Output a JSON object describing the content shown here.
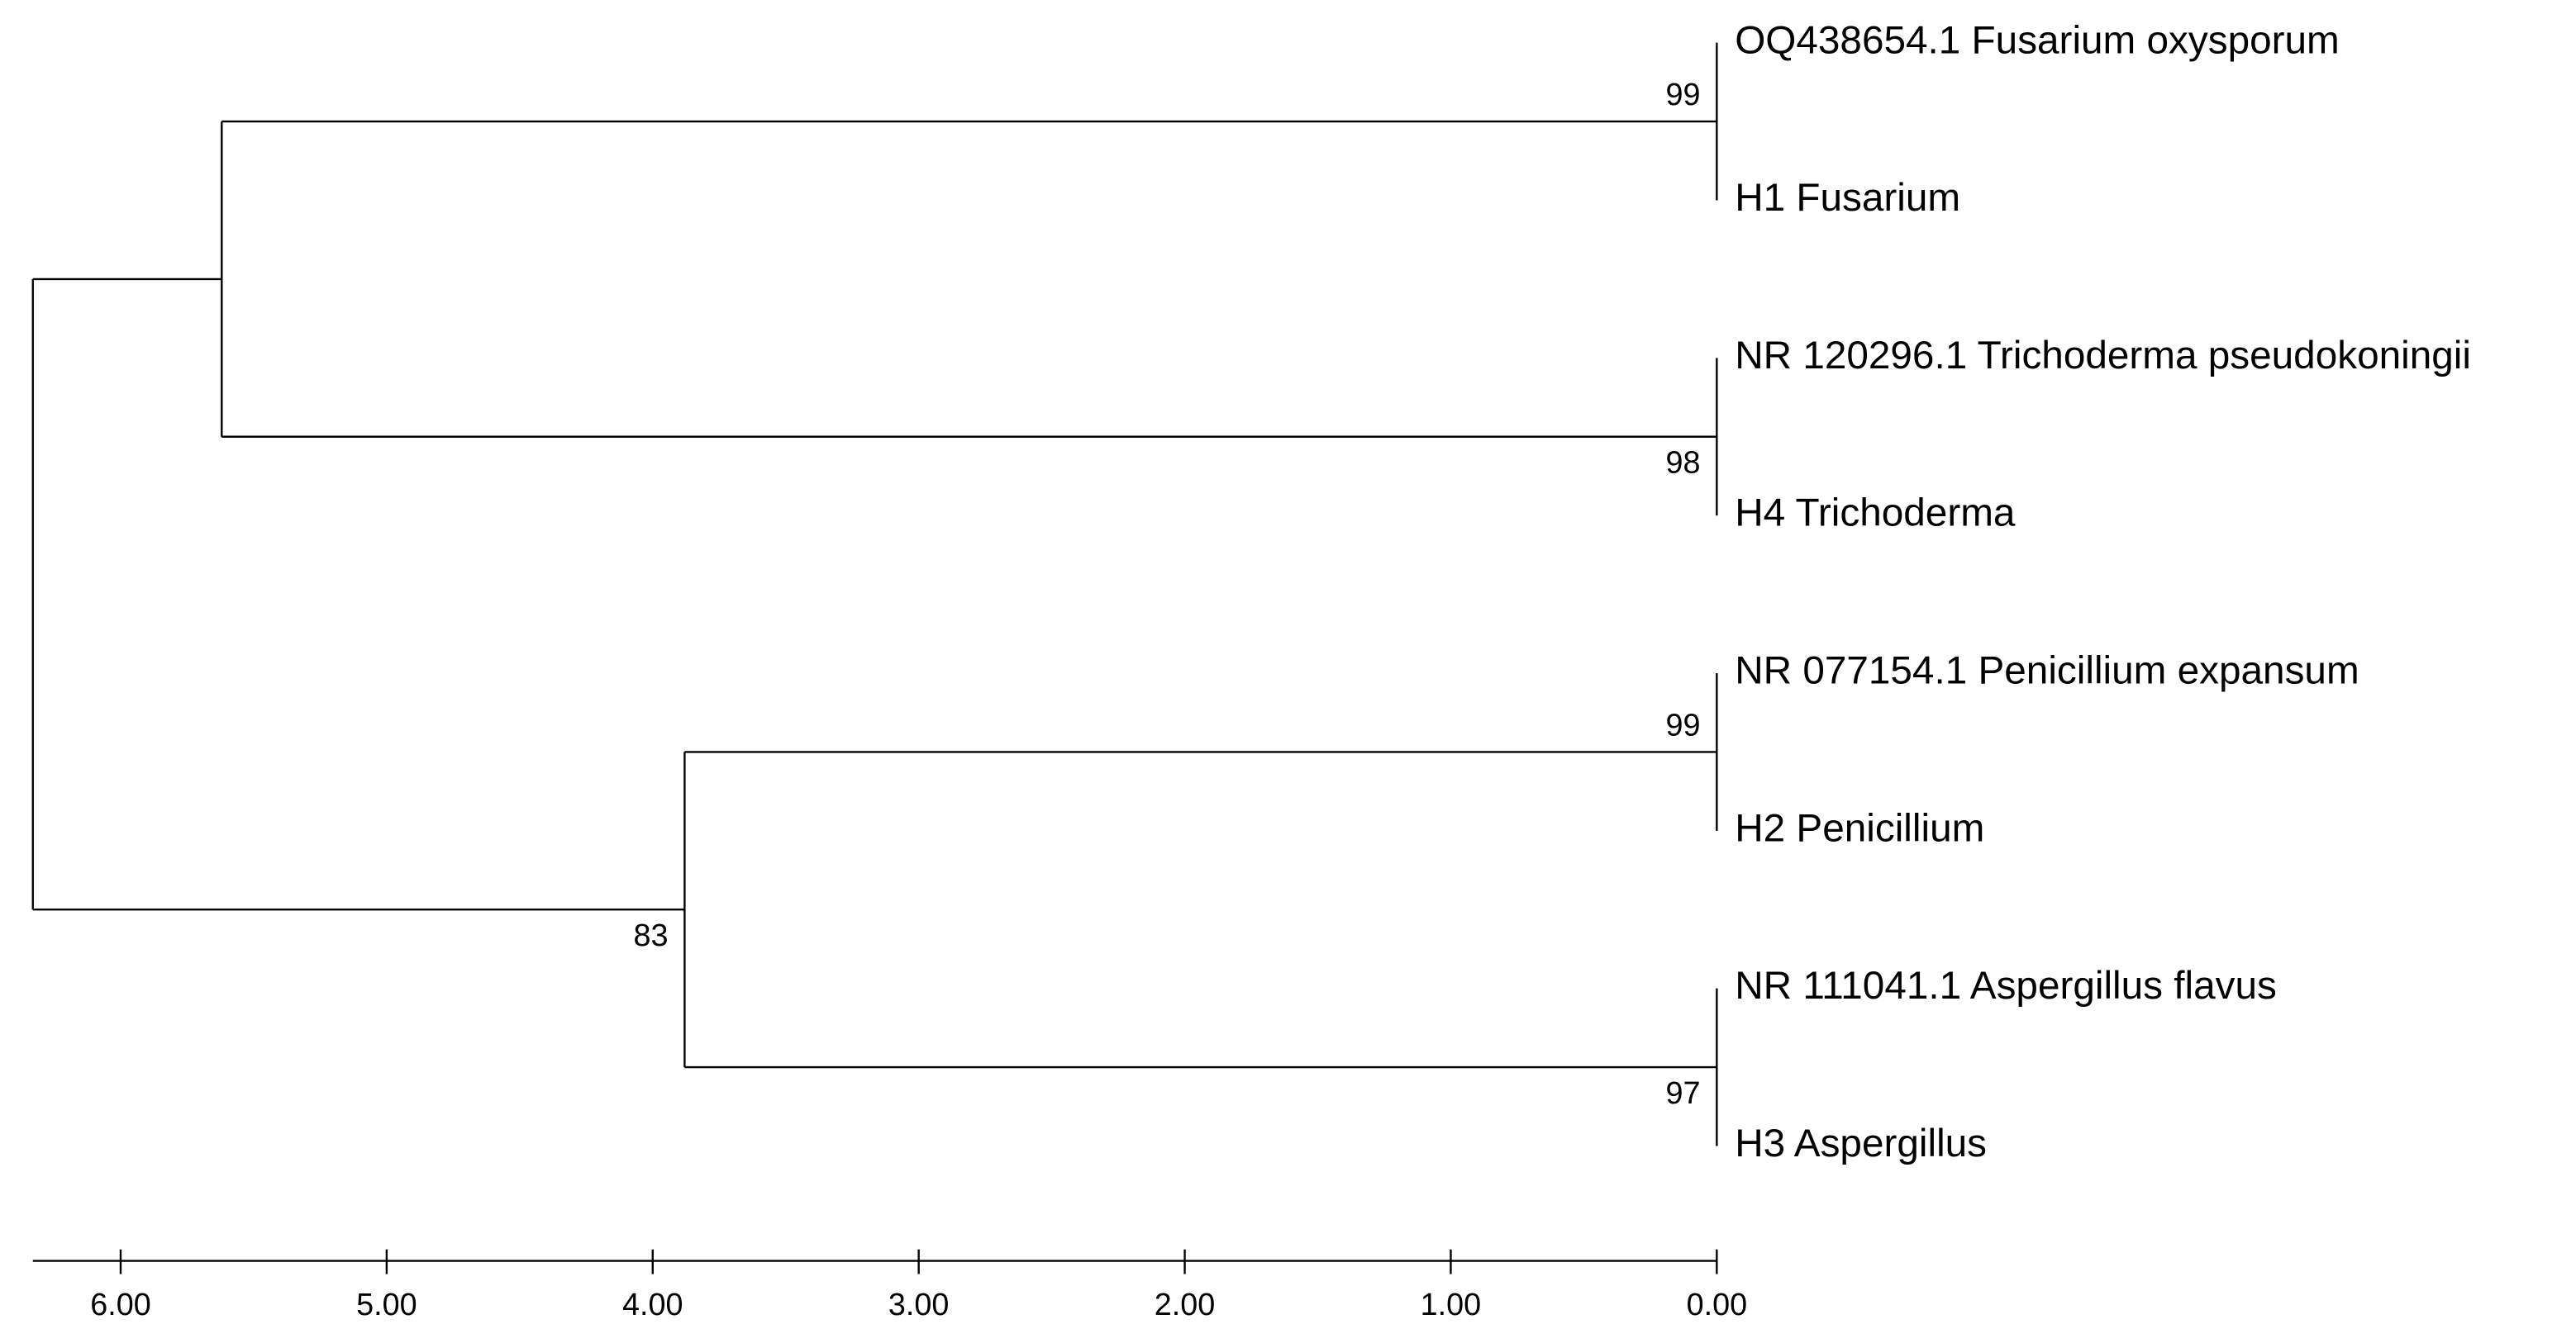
{
  "chart_data": {
    "type": "dendrogram",
    "xlim": [
      6.33,
      0
    ],
    "xticks": [
      {
        "value": 6,
        "label": "6.00"
      },
      {
        "value": 5,
        "label": "5.00"
      },
      {
        "value": 4,
        "label": "4.00"
      },
      {
        "value": 3,
        "label": "3.00"
      },
      {
        "value": 2,
        "label": "2.00"
      },
      {
        "value": 1,
        "label": "1.00"
      },
      {
        "value": 0,
        "label": "0.00"
      }
    ],
    "tree": {
      "height": 6.33,
      "children": [
        {
          "height": 5.62,
          "children": [
            {
              "height": 0,
              "support": 99,
              "children": [
                {
                  "label": "OQ438654.1 Fusarium oxysporum"
                },
                {
                  "label": "H1 Fusarium"
                }
              ]
            },
            {
              "height": 0,
              "support": 98,
              "children": [
                {
                  "label": "NR 120296.1 Trichoderma pseudokoningii"
                },
                {
                  "label": "H4 Trichoderma"
                }
              ]
            }
          ]
        },
        {
          "height": 3.88,
          "support": 83,
          "children": [
            {
              "height": 0,
              "support": 99,
              "children": [
                {
                  "label": "NR 077154.1 Penicillium expansum"
                },
                {
                  "label": "H2 Penicillium"
                }
              ]
            },
            {
              "height": 0,
              "support": 97,
              "children": [
                {
                  "label": "NR 111041.1 Aspergillus flavus"
                },
                {
                  "label": "H3 Aspergillus"
                }
              ]
            }
          ]
        }
      ]
    }
  }
}
